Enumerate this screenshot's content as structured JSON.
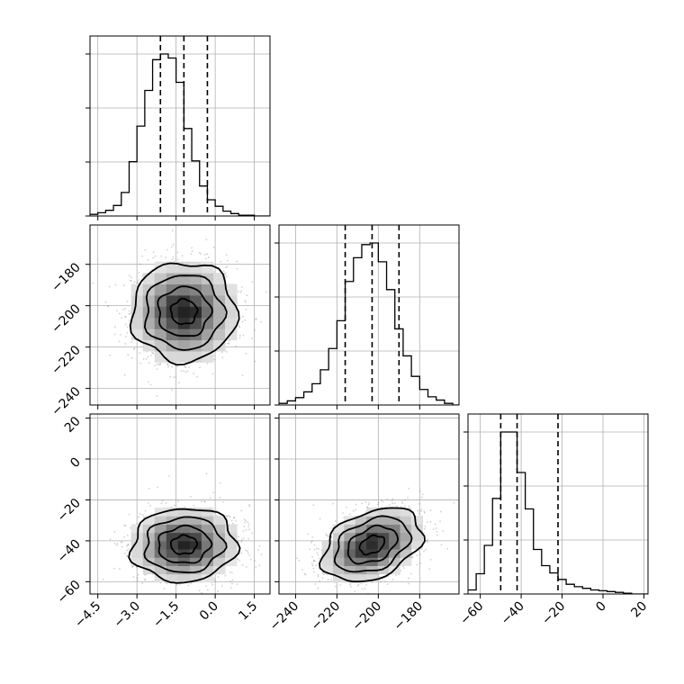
{
  "chart_data": {
    "type": "corner",
    "grid": true,
    "parameters": [
      {
        "key": "p1",
        "range": [
          -4.8,
          2.1
        ],
        "ticks": [
          -4.5,
          -3.0,
          -1.5,
          0.0,
          1.5
        ],
        "tick_labels": [
          "−4.5",
          "−3.0",
          "−1.5",
          "0.0",
          "1.5"
        ],
        "quantiles": [
          -2.1,
          -1.2,
          -0.3
        ],
        "hist": {
          "start": -4.8,
          "width": 0.3,
          "counts": [
            2,
            4,
            7,
            13,
            29,
            67,
            111,
            155,
            193,
            200,
            195,
            165,
            108,
            68,
            37,
            20,
            12,
            6,
            3,
            1,
            1,
            0,
            0
          ]
        }
      },
      {
        "key": "p2",
        "range": [
          -248,
          -161
        ],
        "ticks": [
          -240,
          -220,
          -200,
          -180
        ],
        "tick_labels": [
          "−240",
          "−220",
          "−200",
          "−180"
        ],
        "quantiles": [
          -216,
          -203,
          -190
        ],
        "hist": {
          "start": -248,
          "width": 4,
          "counts": [
            2,
            5,
            9,
            16,
            26,
            43,
            69,
            103,
            151,
            180,
            196,
            198,
            175,
            141,
            93,
            60,
            35,
            19,
            10,
            6,
            2,
            0
          ]
        }
      },
      {
        "key": "p3",
        "range": [
          -66,
          22
        ],
        "ticks": [
          -60,
          -40,
          -20,
          0,
          20
        ],
        "tick_labels": [
          "−60",
          "−40",
          "−20",
          "0",
          "20"
        ],
        "quantiles": [
          -50,
          -42,
          -22
        ],
        "hist": {
          "start": -66,
          "width": 4,
          "counts": [
            5,
            25,
            60,
            118,
            200,
            200,
            150,
            105,
            55,
            35,
            26,
            18,
            12,
            9,
            7,
            5,
            4,
            3,
            2,
            1,
            0,
            0
          ]
        }
      }
    ],
    "pairs": [
      {
        "x": "p1",
        "y": "p2",
        "center": [
          -1.2,
          -203
        ],
        "sd": [
          1.0,
          12
        ],
        "rho": 0.0
      },
      {
        "x": "p1",
        "y": "p3",
        "center": [
          -1.2,
          -42
        ],
        "sd": [
          1.0,
          9
        ],
        "rho": 0.05
      },
      {
        "x": "p2",
        "y": "p3",
        "center": [
          -203,
          -42
        ],
        "sd": [
          12,
          9
        ],
        "rho": 0.35
      }
    ]
  }
}
